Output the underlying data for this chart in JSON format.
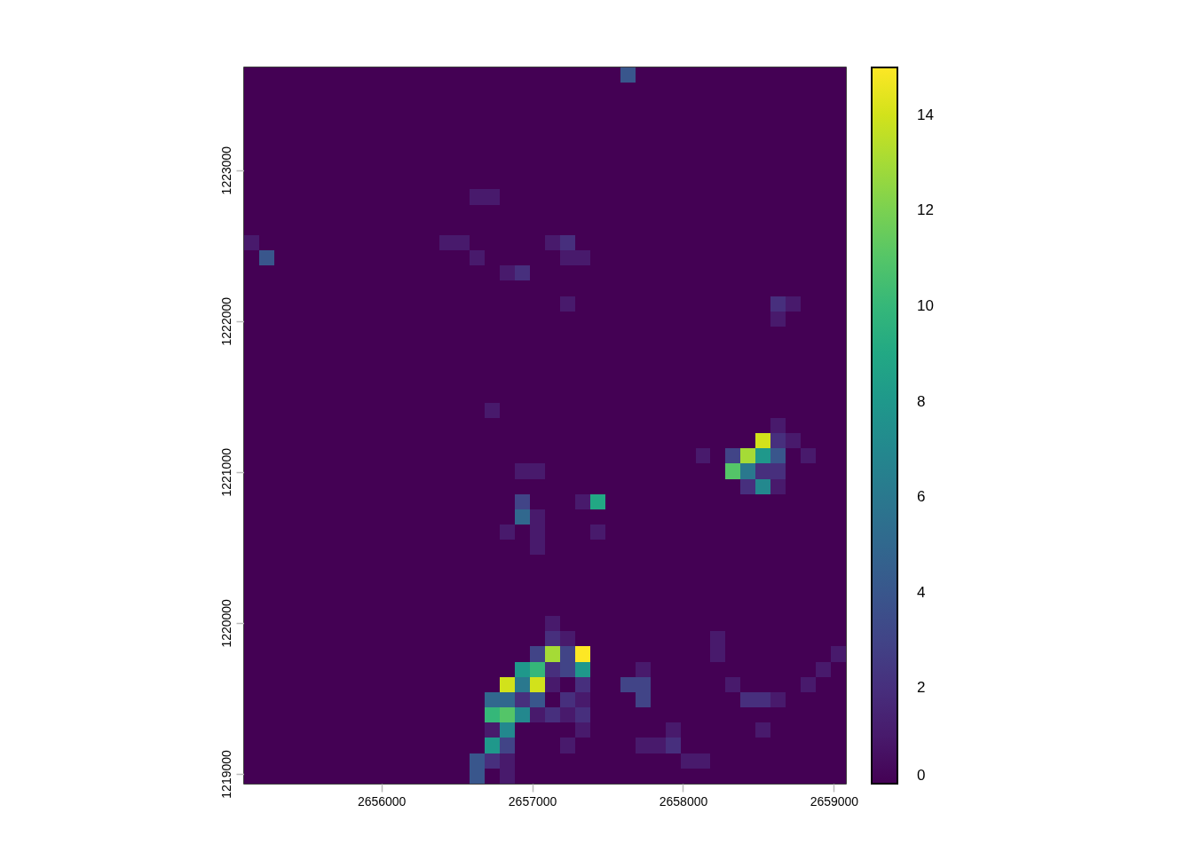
{
  "chart_data": {
    "type": "heatmap",
    "xlim": [
      2655090,
      2659080
    ],
    "ylim": [
      1218935,
      1223680
    ],
    "xticks": [
      2656000,
      2657000,
      2658000,
      2659000
    ],
    "yticks": [
      1219000,
      1220000,
      1221000,
      1222000,
      1223000
    ],
    "clim": [
      0,
      15
    ],
    "cticks": [
      0,
      2,
      4,
      6,
      8,
      10,
      12,
      14
    ],
    "cells": [
      [
        0,
        0,
        0,
        0,
        0,
        0,
        0,
        0,
        0,
        0,
        0,
        0,
        0,
        0,
        0,
        0,
        0,
        0,
        0,
        0,
        0,
        0,
        0,
        0,
        0,
        4,
        0,
        0,
        0,
        0,
        0,
        0,
        0,
        0,
        0,
        0,
        0,
        0,
        0,
        0
      ],
      [
        0,
        0,
        0,
        0,
        0,
        0,
        0,
        0,
        0,
        0,
        0,
        0,
        0,
        0,
        0,
        0,
        0,
        0,
        0,
        0,
        0,
        0,
        0,
        0,
        0,
        0,
        0,
        0,
        0,
        0,
        0,
        0,
        0,
        0,
        0,
        0,
        0,
        0,
        0,
        0
      ],
      [
        0,
        0,
        0,
        0,
        0,
        0,
        0,
        0,
        0,
        0,
        0,
        0,
        0,
        0,
        0,
        0,
        0,
        0,
        0,
        0,
        0,
        0,
        0,
        0,
        0,
        0,
        0,
        0,
        0,
        0,
        0,
        0,
        0,
        0,
        0,
        0,
        0,
        0,
        0,
        0
      ],
      [
        0,
        0,
        0,
        0,
        0,
        0,
        0,
        0,
        0,
        0,
        0,
        0,
        0,
        0,
        0,
        0,
        0,
        0,
        0,
        0,
        0,
        0,
        0,
        0,
        0,
        0,
        0,
        0,
        0,
        0,
        0,
        0,
        0,
        0,
        0,
        0,
        0,
        0,
        0,
        0
      ],
      [
        0,
        0,
        0,
        0,
        0,
        0,
        0,
        0,
        0,
        0,
        0,
        0,
        0,
        0,
        0,
        0,
        0,
        0,
        0,
        0,
        0,
        0,
        0,
        0,
        0,
        0,
        0,
        0,
        0,
        0,
        0,
        0,
        0,
        0,
        0,
        0,
        0,
        0,
        0,
        0
      ],
      [
        0,
        0,
        0,
        0,
        0,
        0,
        0,
        0,
        0,
        0,
        0,
        0,
        0,
        0,
        0,
        0,
        0,
        0,
        0,
        0,
        0,
        0,
        0,
        0,
        0,
        0,
        0,
        0,
        0,
        0,
        0,
        0,
        0,
        0,
        0,
        0,
        0,
        0,
        0,
        0
      ],
      [
        0,
        0,
        0,
        0,
        0,
        0,
        0,
        0,
        0,
        0,
        0,
        0,
        0,
        0,
        0,
        0,
        0,
        0,
        0,
        0,
        0,
        0,
        0,
        0,
        0,
        0,
        0,
        0,
        0,
        0,
        0,
        0,
        0,
        0,
        0,
        0,
        0,
        0,
        0,
        0
      ],
      [
        0,
        0,
        0,
        0,
        0,
        0,
        0,
        0,
        0,
        0,
        0,
        0,
        0,
        0,
        0,
        0,
        0,
        0,
        0,
        0,
        0,
        0,
        0,
        0,
        0,
        0,
        0,
        0,
        0,
        0,
        0,
        0,
        0,
        0,
        0,
        0,
        0,
        0,
        0,
        0
      ],
      [
        0,
        0,
        0,
        0,
        0,
        0,
        0,
        0,
        0,
        0,
        0,
        0,
        0,
        0,
        0,
        1,
        1,
        0,
        0,
        0,
        0,
        0,
        0,
        0,
        0,
        0,
        0,
        0,
        0,
        0,
        0,
        0,
        0,
        0,
        0,
        0,
        0,
        0,
        0,
        0
      ],
      [
        0,
        0,
        0,
        0,
        0,
        0,
        0,
        0,
        0,
        0,
        0,
        0,
        0,
        0,
        0,
        0,
        0,
        0,
        0,
        0,
        0,
        0,
        0,
        0,
        0,
        0,
        0,
        0,
        0,
        0,
        0,
        0,
        0,
        0,
        0,
        0,
        0,
        0,
        0,
        0
      ],
      [
        0,
        0,
        0,
        0,
        0,
        0,
        0,
        0,
        0,
        0,
        0,
        0,
        0,
        0,
        0,
        0,
        0,
        0,
        0,
        0,
        0,
        0,
        0,
        0,
        0,
        0,
        0,
        0,
        0,
        0,
        0,
        0,
        0,
        0,
        0,
        0,
        0,
        0,
        0,
        0
      ],
      [
        1,
        0,
        0,
        0,
        0,
        0,
        0,
        0,
        0,
        0,
        0,
        0,
        0,
        1,
        1,
        0,
        0,
        0,
        0,
        0,
        1,
        2,
        0,
        0,
        0,
        0,
        0,
        0,
        0,
        0,
        0,
        0,
        0,
        0,
        0,
        0,
        0,
        0,
        0,
        0
      ],
      [
        0,
        4,
        0,
        0,
        0,
        0,
        0,
        0,
        0,
        0,
        0,
        0,
        0,
        0,
        0,
        1,
        0,
        0,
        0,
        0,
        0,
        1,
        1,
        0,
        0,
        0,
        0,
        0,
        0,
        0,
        0,
        0,
        0,
        0,
        0,
        0,
        0,
        0,
        0,
        0
      ],
      [
        0,
        0,
        0,
        0,
        0,
        0,
        0,
        0,
        0,
        0,
        0,
        0,
        0,
        0,
        0,
        0,
        0,
        1,
        2,
        0,
        0,
        0,
        0,
        0,
        0,
        0,
        0,
        0,
        0,
        0,
        0,
        0,
        0,
        0,
        0,
        0,
        0,
        0,
        0,
        0
      ],
      [
        0,
        0,
        0,
        0,
        0,
        0,
        0,
        0,
        0,
        0,
        0,
        0,
        0,
        0,
        0,
        0,
        0,
        0,
        0,
        0,
        0,
        0,
        0,
        0,
        0,
        0,
        0,
        0,
        0,
        0,
        0,
        0,
        0,
        0,
        0,
        0,
        0,
        0,
        0,
        0
      ],
      [
        0,
        0,
        0,
        0,
        0,
        0,
        0,
        0,
        0,
        0,
        0,
        0,
        0,
        0,
        0,
        0,
        0,
        0,
        0,
        0,
        0,
        1,
        0,
        0,
        0,
        0,
        0,
        0,
        0,
        0,
        0,
        0,
        0,
        0,
        0,
        2,
        1,
        0,
        0,
        0
      ],
      [
        0,
        0,
        0,
        0,
        0,
        0,
        0,
        0,
        0,
        0,
        0,
        0,
        0,
        0,
        0,
        0,
        0,
        0,
        0,
        0,
        0,
        0,
        0,
        0,
        0,
        0,
        0,
        0,
        0,
        0,
        0,
        0,
        0,
        0,
        0,
        1,
        0,
        0,
        0,
        0
      ],
      [
        0,
        0,
        0,
        0,
        0,
        0,
        0,
        0,
        0,
        0,
        0,
        0,
        0,
        0,
        0,
        0,
        0,
        0,
        0,
        0,
        0,
        0,
        0,
        0,
        0,
        0,
        0,
        0,
        0,
        0,
        0,
        0,
        0,
        0,
        0,
        0,
        0,
        0,
        0,
        0
      ],
      [
        0,
        0,
        0,
        0,
        0,
        0,
        0,
        0,
        0,
        0,
        0,
        0,
        0,
        0,
        0,
        0,
        0,
        0,
        0,
        0,
        0,
        0,
        0,
        0,
        0,
        0,
        0,
        0,
        0,
        0,
        0,
        0,
        0,
        0,
        0,
        0,
        0,
        0,
        0,
        0
      ],
      [
        0,
        0,
        0,
        0,
        0,
        0,
        0,
        0,
        0,
        0,
        0,
        0,
        0,
        0,
        0,
        0,
        0,
        0,
        0,
        0,
        0,
        0,
        0,
        0,
        0,
        0,
        0,
        0,
        0,
        0,
        0,
        0,
        0,
        0,
        0,
        0,
        0,
        0,
        0,
        0
      ],
      [
        0,
        0,
        0,
        0,
        0,
        0,
        0,
        0,
        0,
        0,
        0,
        0,
        0,
        0,
        0,
        0,
        0,
        0,
        0,
        0,
        0,
        0,
        0,
        0,
        0,
        0,
        0,
        0,
        0,
        0,
        0,
        0,
        0,
        0,
        0,
        0,
        0,
        0,
        0,
        0
      ],
      [
        0,
        0,
        0,
        0,
        0,
        0,
        0,
        0,
        0,
        0,
        0,
        0,
        0,
        0,
        0,
        0,
        0,
        0,
        0,
        0,
        0,
        0,
        0,
        0,
        0,
        0,
        0,
        0,
        0,
        0,
        0,
        0,
        0,
        0,
        0,
        0,
        0,
        0,
        0,
        0
      ],
      [
        0,
        0,
        0,
        0,
        0,
        0,
        0,
        0,
        0,
        0,
        0,
        0,
        0,
        0,
        0,
        0,
        1,
        0,
        0,
        0,
        0,
        0,
        0,
        0,
        0,
        0,
        0,
        0,
        0,
        0,
        0,
        0,
        0,
        0,
        0,
        0,
        0,
        0,
        0,
        0
      ],
      [
        0,
        0,
        0,
        0,
        0,
        0,
        0,
        0,
        0,
        0,
        0,
        0,
        0,
        0,
        0,
        0,
        0,
        0,
        0,
        0,
        0,
        0,
        0,
        0,
        0,
        0,
        0,
        0,
        0,
        0,
        0,
        0,
        0,
        0,
        0,
        1,
        0,
        0,
        0,
        0
      ],
      [
        0,
        0,
        0,
        0,
        0,
        0,
        0,
        0,
        0,
        0,
        0,
        0,
        0,
        0,
        0,
        0,
        0,
        0,
        0,
        0,
        0,
        0,
        0,
        0,
        0,
        0,
        0,
        0,
        0,
        0,
        0,
        0,
        0,
        0,
        14,
        2,
        1,
        0,
        0,
        0
      ],
      [
        0,
        0,
        0,
        0,
        0,
        0,
        0,
        0,
        0,
        0,
        0,
        0,
        0,
        0,
        0,
        0,
        0,
        0,
        0,
        0,
        0,
        0,
        0,
        0,
        0,
        0,
        0,
        0,
        0,
        0,
        1,
        0,
        3,
        13,
        8,
        4,
        0,
        1,
        0,
        0
      ],
      [
        0,
        0,
        0,
        0,
        0,
        0,
        0,
        0,
        0,
        0,
        0,
        0,
        0,
        0,
        0,
        0,
        0,
        0,
        1,
        1,
        0,
        0,
        0,
        0,
        0,
        0,
        0,
        0,
        0,
        0,
        0,
        0,
        11,
        6,
        2,
        2,
        0,
        0,
        0,
        0
      ],
      [
        0,
        0,
        0,
        0,
        0,
        0,
        0,
        0,
        0,
        0,
        0,
        0,
        0,
        0,
        0,
        0,
        0,
        0,
        0,
        0,
        0,
        0,
        0,
        0,
        0,
        0,
        0,
        0,
        0,
        0,
        0,
        0,
        0,
        2,
        7,
        1,
        0,
        0,
        0,
        0
      ],
      [
        0,
        0,
        0,
        0,
        0,
        0,
        0,
        0,
        0,
        0,
        0,
        0,
        0,
        0,
        0,
        0,
        0,
        0,
        3,
        0,
        0,
        0,
        1,
        9,
        0,
        0,
        0,
        0,
        0,
        0,
        0,
        0,
        0,
        0,
        0,
        0,
        0,
        0,
        0,
        0
      ],
      [
        0,
        0,
        0,
        0,
        0,
        0,
        0,
        0,
        0,
        0,
        0,
        0,
        0,
        0,
        0,
        0,
        0,
        0,
        5,
        1,
        0,
        0,
        0,
        0,
        0,
        0,
        0,
        0,
        0,
        0,
        0,
        0,
        0,
        0,
        0,
        0,
        0,
        0,
        0,
        0
      ],
      [
        0,
        0,
        0,
        0,
        0,
        0,
        0,
        0,
        0,
        0,
        0,
        0,
        0,
        0,
        0,
        0,
        0,
        1,
        0,
        1,
        0,
        0,
        0,
        1,
        0,
        0,
        0,
        0,
        0,
        0,
        0,
        0,
        0,
        0,
        0,
        0,
        0,
        0,
        0,
        0
      ],
      [
        0,
        0,
        0,
        0,
        0,
        0,
        0,
        0,
        0,
        0,
        0,
        0,
        0,
        0,
        0,
        0,
        0,
        0,
        0,
        1,
        0,
        0,
        0,
        0,
        0,
        0,
        0,
        0,
        0,
        0,
        0,
        0,
        0,
        0,
        0,
        0,
        0,
        0,
        0,
        0
      ],
      [
        0,
        0,
        0,
        0,
        0,
        0,
        0,
        0,
        0,
        0,
        0,
        0,
        0,
        0,
        0,
        0,
        0,
        0,
        0,
        0,
        0,
        0,
        0,
        0,
        0,
        0,
        0,
        0,
        0,
        0,
        0,
        0,
        0,
        0,
        0,
        0,
        0,
        0,
        0,
        0
      ],
      [
        0,
        0,
        0,
        0,
        0,
        0,
        0,
        0,
        0,
        0,
        0,
        0,
        0,
        0,
        0,
        0,
        0,
        0,
        0,
        0,
        0,
        0,
        0,
        0,
        0,
        0,
        0,
        0,
        0,
        0,
        0,
        0,
        0,
        0,
        0,
        0,
        0,
        0,
        0,
        0
      ],
      [
        0,
        0,
        0,
        0,
        0,
        0,
        0,
        0,
        0,
        0,
        0,
        0,
        0,
        0,
        0,
        0,
        0,
        0,
        0,
        0,
        0,
        0,
        0,
        0,
        0,
        0,
        0,
        0,
        0,
        0,
        0,
        0,
        0,
        0,
        0,
        0,
        0,
        0,
        0,
        0
      ],
      [
        0,
        0,
        0,
        0,
        0,
        0,
        0,
        0,
        0,
        0,
        0,
        0,
        0,
        0,
        0,
        0,
        0,
        0,
        0,
        0,
        0,
        0,
        0,
        0,
        0,
        0,
        0,
        0,
        0,
        0,
        0,
        0,
        0,
        0,
        0,
        0,
        0,
        0,
        0,
        0
      ],
      [
        0,
        0,
        0,
        0,
        0,
        0,
        0,
        0,
        0,
        0,
        0,
        0,
        0,
        0,
        0,
        0,
        0,
        0,
        0,
        0,
        1,
        0,
        0,
        0,
        0,
        0,
        0,
        0,
        0,
        0,
        0,
        0,
        0,
        0,
        0,
        0,
        0,
        0,
        0,
        0
      ],
      [
        0,
        0,
        0,
        0,
        0,
        0,
        0,
        0,
        0,
        0,
        0,
        0,
        0,
        0,
        0,
        0,
        0,
        0,
        0,
        0,
        2,
        1,
        0,
        0,
        0,
        0,
        0,
        0,
        0,
        0,
        0,
        1,
        0,
        0,
        0,
        0,
        0,
        0,
        0,
        0
      ],
      [
        0,
        0,
        0,
        0,
        0,
        0,
        0,
        0,
        0,
        0,
        0,
        0,
        0,
        0,
        0,
        0,
        0,
        0,
        0,
        3,
        13,
        3,
        15,
        0,
        0,
        0,
        0,
        0,
        0,
        0,
        0,
        1,
        0,
        0,
        0,
        0,
        0,
        0,
        0,
        1
      ],
      [
        0,
        0,
        0,
        0,
        0,
        0,
        0,
        0,
        0,
        0,
        0,
        0,
        0,
        0,
        0,
        0,
        0,
        0,
        8,
        10,
        2,
        3,
        8,
        0,
        0,
        0,
        1,
        0,
        0,
        0,
        0,
        0,
        0,
        0,
        0,
        0,
        0,
        0,
        1,
        0
      ],
      [
        0,
        0,
        0,
        0,
        0,
        0,
        0,
        0,
        0,
        0,
        0,
        0,
        0,
        0,
        0,
        0,
        0,
        14,
        6,
        14,
        1,
        0,
        2,
        0,
        0,
        3,
        3,
        0,
        0,
        0,
        0,
        0,
        1,
        0,
        0,
        0,
        0,
        1,
        0,
        0
      ],
      [
        0,
        0,
        0,
        0,
        0,
        0,
        0,
        0,
        0,
        0,
        0,
        0,
        0,
        0,
        0,
        0,
        5,
        5,
        2,
        4,
        0,
        2,
        1,
        0,
        0,
        0,
        3,
        0,
        0,
        0,
        0,
        0,
        0,
        2,
        2,
        1,
        0,
        0,
        0,
        0
      ],
      [
        0,
        0,
        0,
        0,
        0,
        0,
        0,
        0,
        0,
        0,
        0,
        0,
        0,
        0,
        0,
        0,
        10,
        11,
        7,
        1,
        2,
        1,
        2,
        0,
        0,
        0,
        0,
        0,
        0,
        0,
        0,
        0,
        0,
        0,
        0,
        0,
        0,
        0,
        0,
        0
      ],
      [
        0,
        0,
        0,
        0,
        0,
        0,
        0,
        0,
        0,
        0,
        0,
        0,
        0,
        0,
        0,
        0,
        1,
        7,
        0,
        0,
        0,
        0,
        1,
        0,
        0,
        0,
        0,
        0,
        1,
        0,
        0,
        0,
        0,
        0,
        1,
        0,
        0,
        0,
        0,
        0
      ],
      [
        0,
        0,
        0,
        0,
        0,
        0,
        0,
        0,
        0,
        0,
        0,
        0,
        0,
        0,
        0,
        0,
        8,
        3,
        0,
        0,
        0,
        1,
        0,
        0,
        0,
        0,
        1,
        1,
        2,
        0,
        0,
        0,
        0,
        0,
        0,
        0,
        0,
        0,
        0,
        0
      ],
      [
        0,
        0,
        0,
        0,
        0,
        0,
        0,
        0,
        0,
        0,
        0,
        0,
        0,
        0,
        0,
        4,
        2,
        1,
        0,
        0,
        0,
        0,
        0,
        0,
        0,
        0,
        0,
        0,
        0,
        1,
        1,
        0,
        0,
        0,
        0,
        0,
        0,
        0,
        0,
        0
      ],
      [
        0,
        0,
        0,
        0,
        0,
        0,
        0,
        0,
        0,
        0,
        0,
        0,
        0,
        0,
        0,
        4,
        0,
        1,
        0,
        0,
        0,
        0,
        0,
        0,
        0,
        0,
        0,
        0,
        0,
        0,
        0,
        0,
        0,
        0,
        0,
        0,
        0,
        0,
        0,
        0
      ]
    ]
  }
}
